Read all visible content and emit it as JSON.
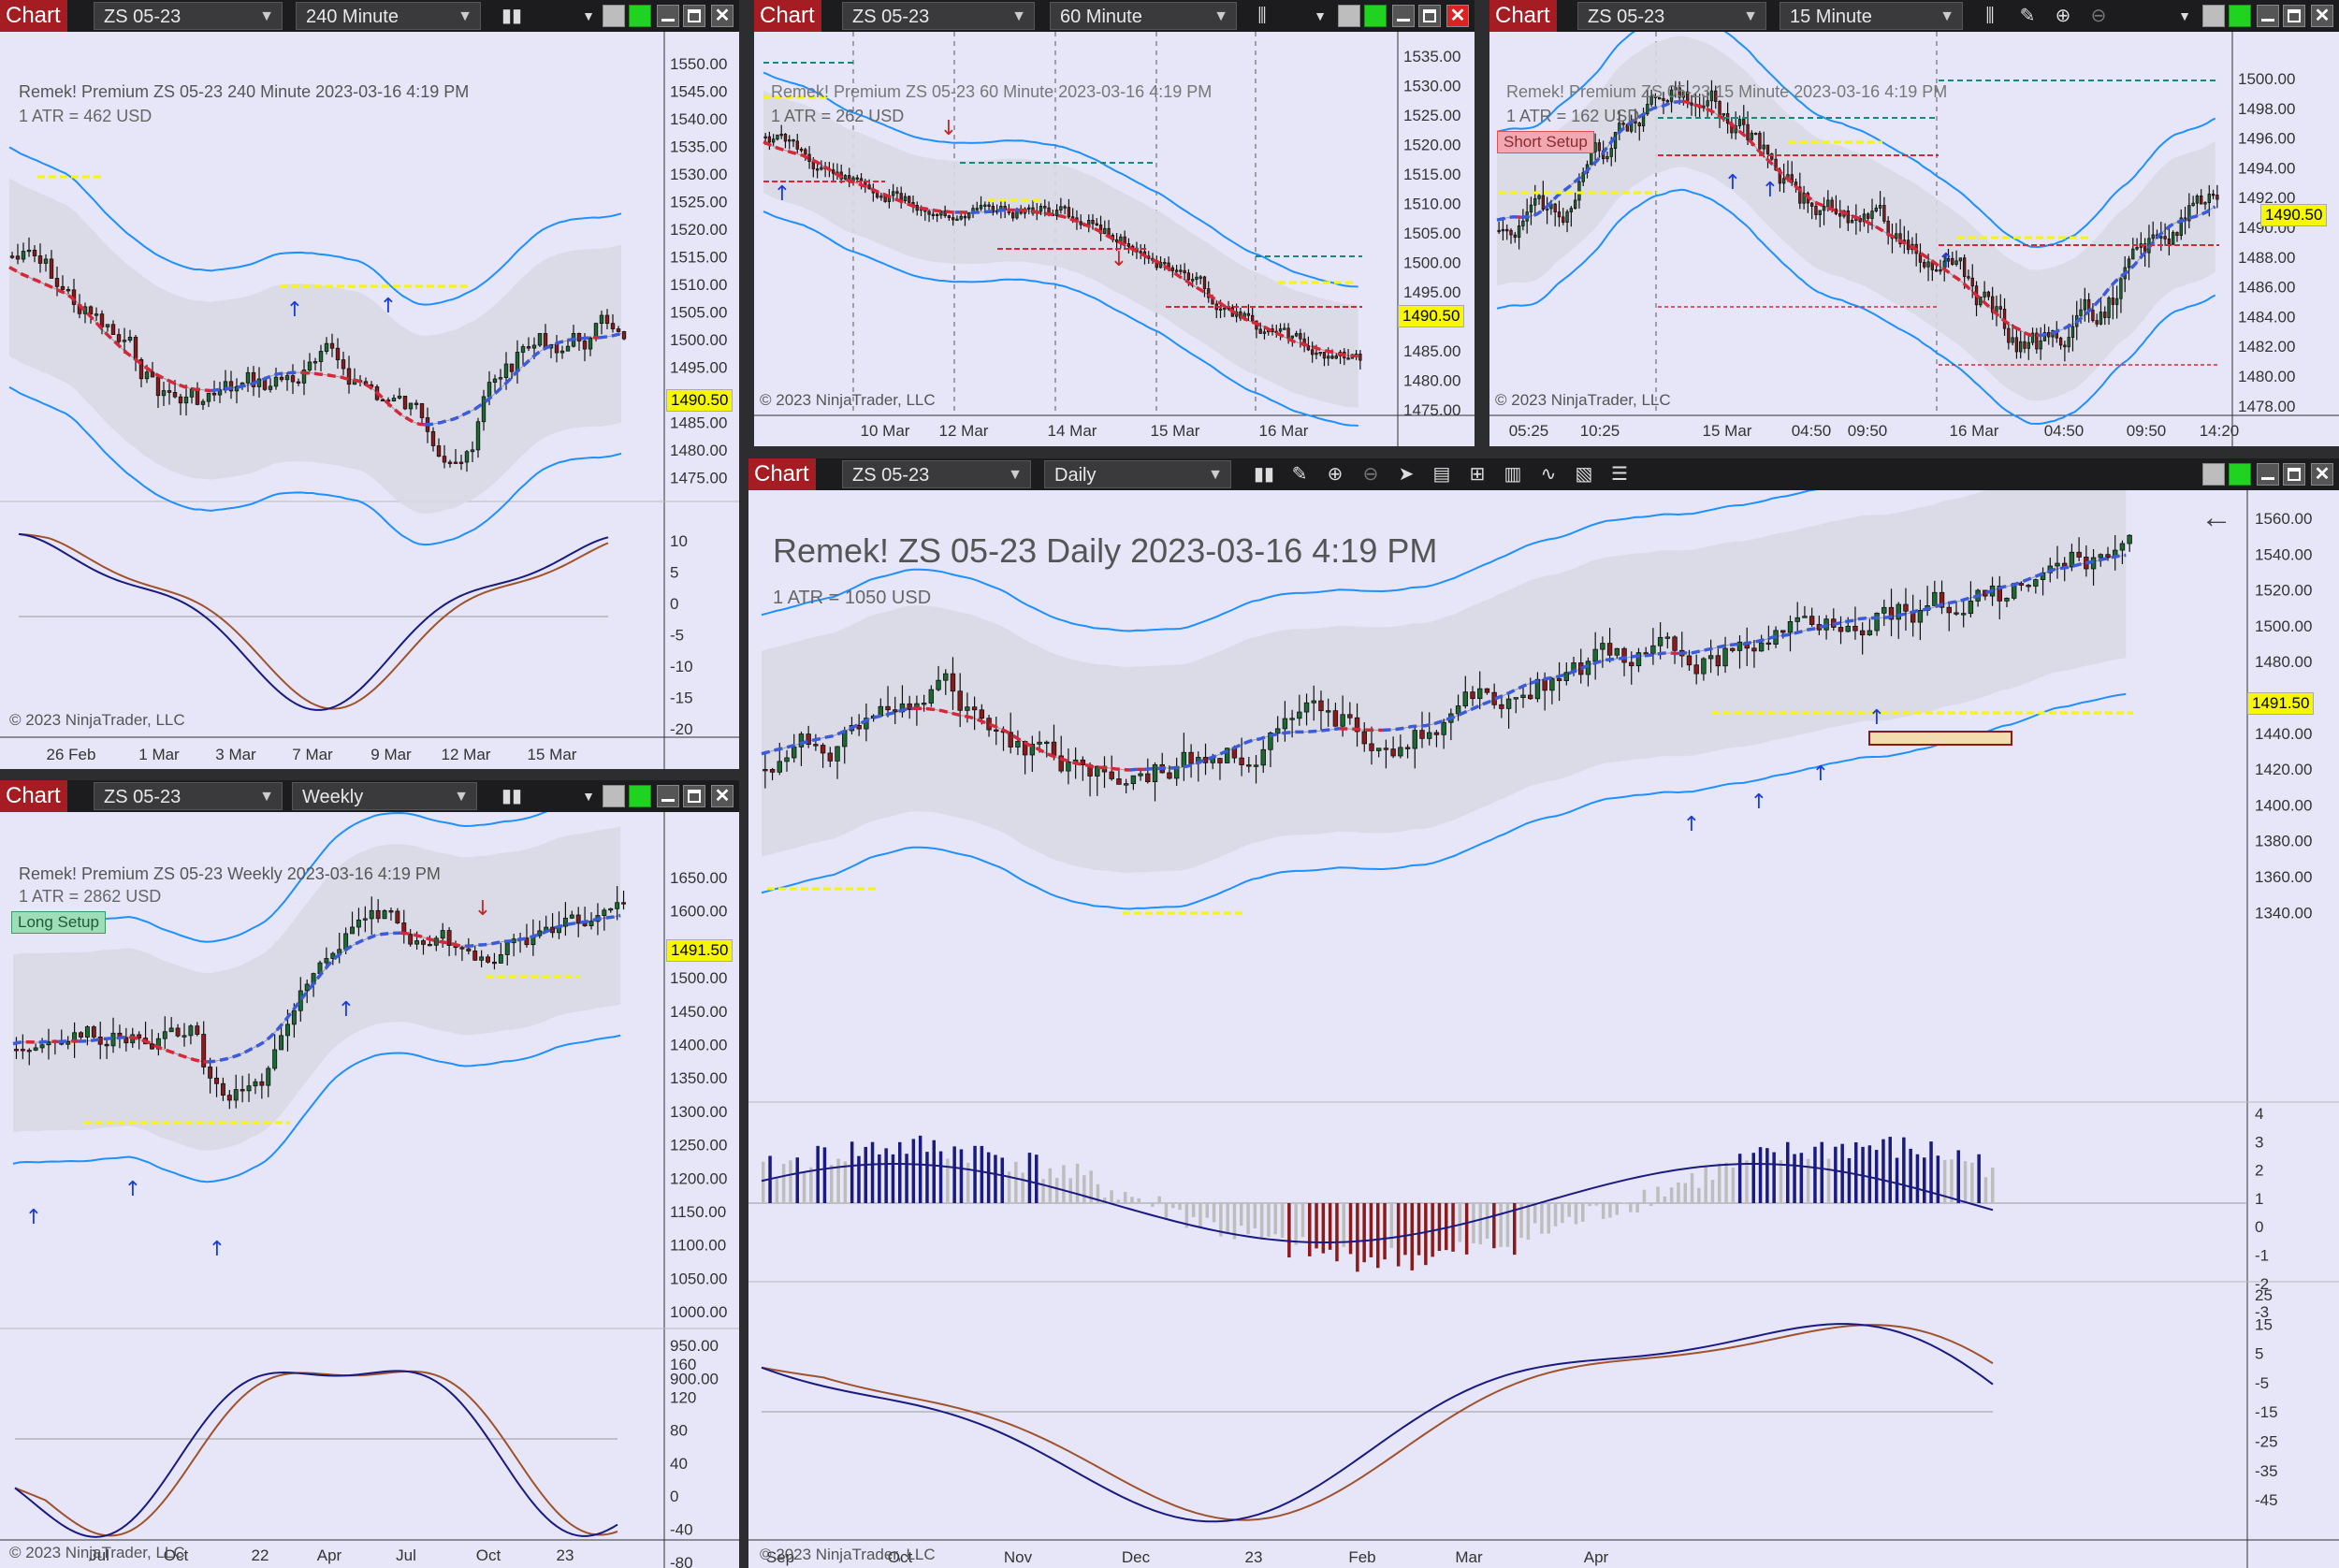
{
  "app_label": "Chart",
  "windows": {
    "w240": {
      "instrument": "ZS 05-23",
      "timeframe": "240 Minute",
      "overlay": "Remek!  Premium  ZS 05-23  240 Minute  2023-03-16 4:19 PM",
      "atr": "1 ATR = 462 USD",
      "price_axis": [
        "1550.00",
        "1545.00",
        "1540.00",
        "1535.00",
        "1530.00",
        "1525.00",
        "1520.00",
        "1515.00",
        "1510.00",
        "1505.00",
        "1500.00",
        "1495.00",
        "1490.00",
        "1485.00",
        "1480.00",
        "1475.00"
      ],
      "price_tag": "1490.50",
      "osc_axis": [
        "10",
        "5",
        "0",
        "-5",
        "-10",
        "-15",
        "-20"
      ],
      "dates": [
        "26 Feb",
        "1 Mar",
        "3 Mar",
        "7 Mar",
        "9 Mar",
        "12 Mar",
        "15 Mar"
      ],
      "copyright": "© 2023 NinjaTrader, LLC"
    },
    "w60": {
      "instrument": "ZS 05-23",
      "timeframe": "60 Minute",
      "overlay": "Remek!  Premium  ZS 05-23  60 Minute  2023-03-16 4:19 PM",
      "atr": "1 ATR = 262 USD",
      "price_axis": [
        "1535.00",
        "1530.00",
        "1525.00",
        "1520.00",
        "1515.00",
        "1510.00",
        "1505.00",
        "1500.00",
        "1495.00",
        "1490.00",
        "1485.00",
        "1480.00",
        "1475.00"
      ],
      "price_tag": "1490.50",
      "dates": [
        "10 Mar",
        "12 Mar",
        "14 Mar",
        "15 Mar",
        "16 Mar"
      ],
      "copyright": "© 2023 NinjaTrader, LLC"
    },
    "w15": {
      "instrument": "ZS 05-23",
      "timeframe": "15 Minute",
      "overlay": "Remek!  Premium  ZS 05-23  15 Minute  2023-03-16 4:19 PM",
      "atr": "1 ATR = 162 USD",
      "badge": "Short Setup",
      "price_axis": [
        "1500.00",
        "1498.00",
        "1496.00",
        "1494.00",
        "1492.00",
        "1490.00",
        "1488.00",
        "1486.00",
        "1484.00",
        "1482.00",
        "1480.00",
        "1478.00"
      ],
      "price_tag": "1490.50",
      "dates": [
        "05:25",
        "10:25",
        "15 Mar",
        "04:50",
        "09:50",
        "16 Mar",
        "04:50",
        "09:50",
        "14:20"
      ],
      "copyright": "© 2023 NinjaTrader, LLC"
    },
    "weekly": {
      "instrument": "ZS 05-23",
      "timeframe": "Weekly",
      "overlay": "Remek!  Premium  ZS 05-23  Weekly  2023-03-16 4:19 PM",
      "atr": "1 ATR = 2862 USD",
      "badge": "Long Setup",
      "price_axis": [
        "1650.00",
        "1600.00",
        "1550.00",
        "1500.00",
        "1450.00",
        "1400.00",
        "1350.00",
        "1300.00",
        "1250.00",
        "1200.00",
        "1150.00",
        "1100.00",
        "1050.00",
        "1000.00",
        "950.00",
        "900.00"
      ],
      "price_tag": "1491.50",
      "osc_axis": [
        "160",
        "120",
        "80",
        "40",
        "0",
        "-40",
        "-80"
      ],
      "dates": [
        "Jul",
        "Oct",
        "22",
        "Apr",
        "Jul",
        "Oct",
        "23"
      ],
      "copyright": "© 2023 NinjaTrader, LLC"
    },
    "daily": {
      "instrument": "ZS 05-23",
      "timeframe": "Daily",
      "overlay": "Remek!  ZS 05-23  Daily  2023-03-16 4:19 PM",
      "atr": "1 ATR = 1050 USD",
      "price_axis": [
        "1560.00",
        "1540.00",
        "1520.00",
        "1500.00",
        "1480.00",
        "1460.00",
        "1440.00",
        "1420.00",
        "1400.00",
        "1380.00",
        "1360.00",
        "1340.00"
      ],
      "price_tag": "1491.50",
      "hist_axis": [
        "4",
        "3",
        "2",
        "1",
        "0",
        "-1",
        "-2",
        "-3"
      ],
      "osc_axis": [
        "25",
        "15",
        "5",
        "-5",
        "-15",
        "-25",
        "-35",
        "-45"
      ],
      "dates": [
        "Sep",
        "Oct",
        "Nov",
        "Dec",
        "23",
        "Feb",
        "Mar",
        "Apr"
      ],
      "copyright": "© 2023 NinjaTrader, LLC"
    }
  },
  "icons": [
    "bar-chart-icon",
    "drawing-tool-icon",
    "zoom-in-icon",
    "zoom-out-icon",
    "pointer-icon",
    "data-box-icon",
    "templates-icon",
    "strategies-icon",
    "indicators-icon",
    "properties-icon",
    "list-icon"
  ],
  "colors": {
    "title_red": "#a51c22",
    "bg": "#e6e6f8",
    "band": "#1e90ff",
    "bull": "#1a6a32",
    "bear": "#8b1a1a",
    "fast": "#1a1a80",
    "slow": "#a0522d"
  }
}
